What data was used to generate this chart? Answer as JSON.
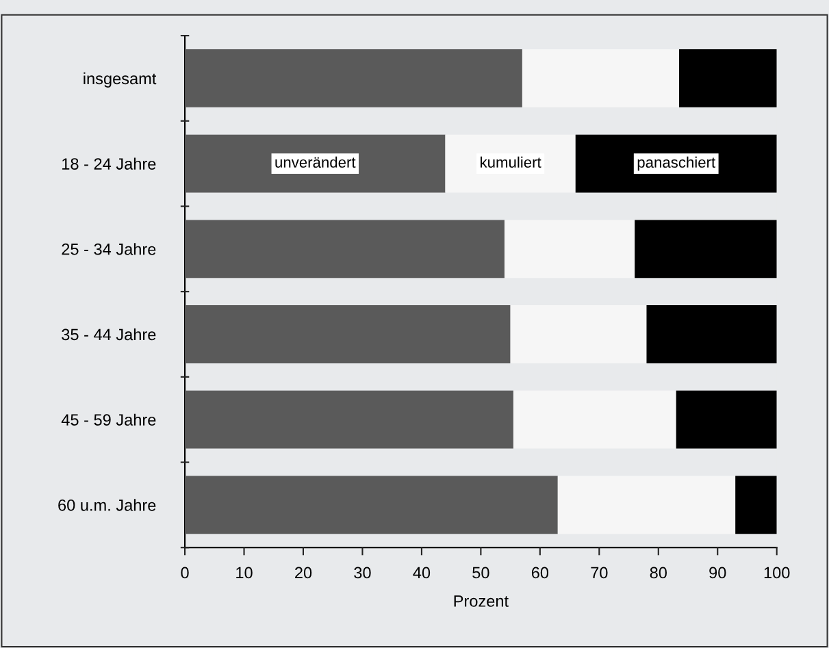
{
  "chart_data": {
    "type": "bar",
    "orientation": "horizontal",
    "stacked": true,
    "xlabel": "Prozent",
    "categories": [
      "insgesamt",
      "18 - 24 Jahre",
      "25 - 34 Jahre",
      "35 - 44 Jahre",
      "45 - 59 Jahre",
      "60 u.m. Jahre"
    ],
    "series": [
      {
        "name": "unverändert",
        "color": "#5a5a5a",
        "values": [
          57,
          44,
          54,
          55,
          55.5,
          63
        ]
      },
      {
        "name": "kumuliert",
        "color": "#f6f6f6",
        "values": [
          26.5,
          22,
          22,
          23,
          27.5,
          30
        ]
      },
      {
        "name": "panaschiert",
        "color": "#000000",
        "values": [
          16.5,
          34,
          24,
          22,
          17,
          7
        ]
      }
    ],
    "xlim": [
      0,
      100
    ],
    "xticks": [
      0,
      10,
      20,
      30,
      40,
      50,
      60,
      70,
      80,
      90,
      100
    ],
    "grid": false,
    "legend": false
  }
}
